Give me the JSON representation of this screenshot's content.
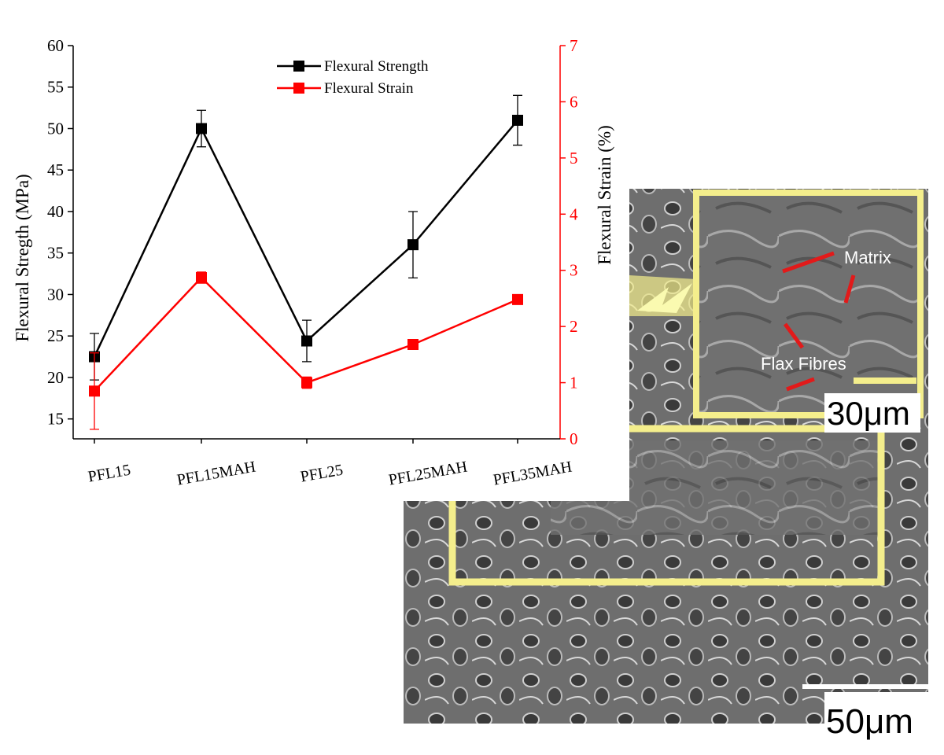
{
  "chart_data": {
    "type": "line",
    "y_label": "Flexural Stregth (MPa)",
    "y2_label": "Flexural Strain (%)",
    "categories": [
      "PFL15",
      "PFL15MAH",
      "PFL25",
      "PFL25MAH",
      "PFL35MAH"
    ],
    "series": [
      {
        "name": "Flexural Strength",
        "color": "#000000",
        "values": [
          22.5,
          50,
          24.4,
          36,
          51
        ],
        "errors": [
          2.8,
          2.2,
          2.5,
          4,
          3
        ]
      },
      {
        "name": "Flexural Strain",
        "color": "#ff0000",
        "axis": "y2",
        "values": [
          0.85,
          2.87,
          1.0,
          1.68,
          2.48
        ],
        "errors": [
          0.68,
          0.1,
          0.1,
          0.03,
          0.05
        ]
      }
    ],
    "ylim": [
      12.6,
      60
    ],
    "yticks": [
      15,
      20,
      25,
      30,
      35,
      40,
      45,
      50,
      55,
      60
    ],
    "y2lim": [
      0,
      7
    ],
    "y2ticks": [
      0,
      1,
      2,
      3,
      4,
      5,
      6,
      7
    ],
    "legend": "top-center",
    "annotations": [
      "Matrix",
      "Flax Fibres",
      "30μm",
      "50μm"
    ]
  }
}
